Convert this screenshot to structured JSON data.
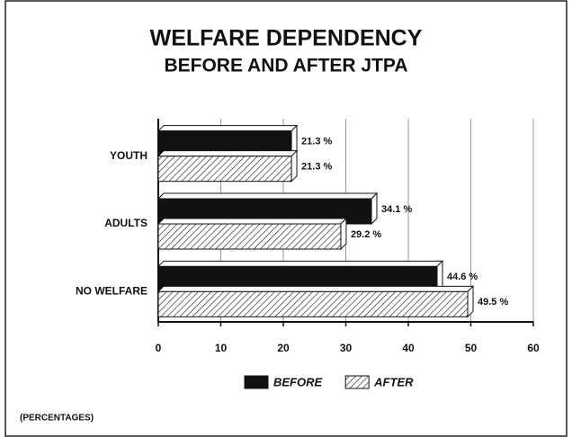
{
  "chart_data": {
    "type": "hbar",
    "title": "WELFARE DEPENDENCY",
    "subtitle": "BEFORE AND AFTER JTPA",
    "footnote": "(PERCENTAGES)",
    "categories": [
      "YOUTH",
      "ADULTS",
      "NO WELFARE"
    ],
    "series": [
      {
        "name": "BEFORE",
        "color": "#111111",
        "values": [
          21.3,
          34.1,
          44.6
        ],
        "value_labels": [
          "21.3 %",
          "34.1 %",
          "44.6 %"
        ]
      },
      {
        "name": "AFTER",
        "color": "hatch",
        "values": [
          21.3,
          29.2,
          49.5
        ],
        "value_labels": [
          "21.3 %",
          "29.2 %",
          "49.5 %"
        ]
      }
    ],
    "xlim": [
      0,
      60
    ],
    "xticks": [
      0,
      10,
      20,
      30,
      40,
      50,
      60
    ],
    "grid": true,
    "legend": "bottom"
  }
}
